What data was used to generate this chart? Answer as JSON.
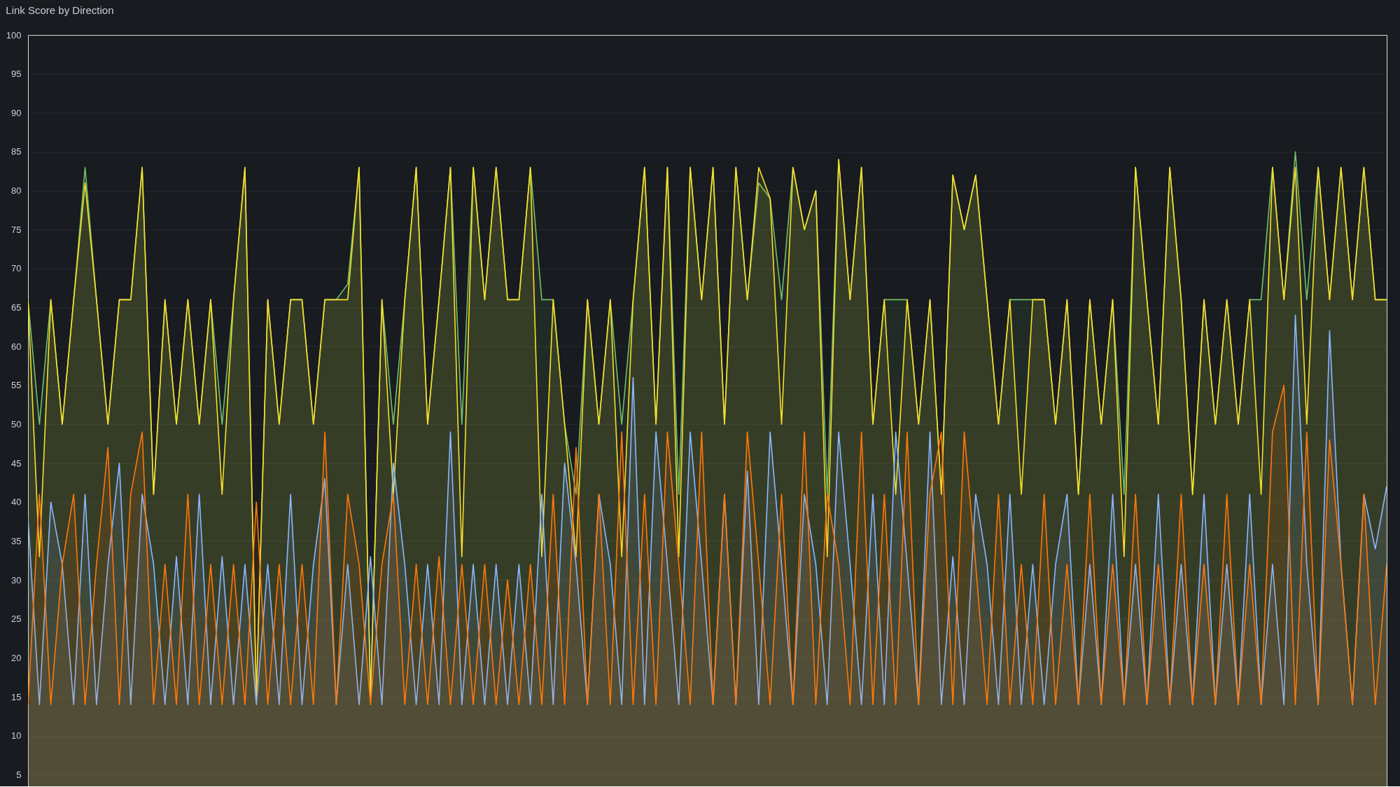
{
  "chart_data": {
    "type": "area",
    "title": "Link Score by Direction",
    "categories": [
      null,
      null,
      null,
      null,
      null,
      null,
      null,
      null,
      null,
      null,
      null,
      null,
      null,
      null,
      null,
      null,
      null,
      null,
      null,
      null,
      null,
      null,
      null,
      null,
      null,
      null,
      null,
      null,
      null,
      null,
      null,
      null,
      null,
      null,
      null,
      null,
      null,
      null,
      null,
      null,
      null,
      null,
      null,
      null,
      null,
      null,
      null,
      null,
      null,
      null,
      null,
      null,
      null,
      null,
      null,
      null,
      null,
      null,
      null,
      null,
      null,
      null,
      null,
      null,
      null,
      null,
      null,
      null,
      null,
      null,
      null,
      null,
      null,
      null,
      null,
      null,
      null,
      null,
      null,
      null,
      null,
      null,
      null,
      null,
      null,
      null,
      null,
      null,
      null,
      null,
      null,
      null,
      null,
      null,
      null,
      null,
      null,
      null,
      null,
      null,
      null,
      null,
      null,
      null,
      null,
      null,
      null,
      null,
      null,
      null,
      null,
      null,
      null,
      null,
      null,
      null,
      null,
      null,
      null,
      null
    ],
    "series": [
      {
        "color": "#73bf69",
        "values": [
          66,
          50,
          66,
          50,
          66,
          83,
          66,
          50,
          66,
          66,
          83,
          41,
          66,
          50,
          66,
          50,
          66,
          50,
          66,
          83,
          15,
          66,
          50,
          66,
          66,
          50,
          66,
          66,
          68,
          83,
          15,
          66,
          50,
          66,
          83,
          50,
          66,
          83,
          50,
          83,
          66,
          83,
          66,
          66,
          83,
          66,
          66,
          50,
          41,
          66,
          50,
          66,
          50,
          66,
          83,
          50,
          83,
          41,
          83,
          66,
          83,
          50,
          83,
          66,
          81,
          79,
          66,
          83,
          75,
          80,
          41,
          84,
          66,
          83,
          50,
          66,
          66,
          66,
          50,
          66,
          41,
          82,
          75,
          82,
          66,
          50,
          66,
          66,
          66,
          66,
          50,
          66,
          41,
          66,
          50,
          66,
          41,
          83,
          66,
          50,
          83,
          66,
          41,
          66,
          50,
          66,
          50,
          66,
          66,
          83,
          66,
          85,
          66,
          83,
          66,
          83,
          66,
          83,
          66,
          66
        ]
      },
      {
        "color": "#fade2a",
        "values": [
          66,
          33,
          66,
          50,
          66,
          81,
          66,
          50,
          66,
          66,
          83,
          41,
          66,
          50,
          66,
          50,
          66,
          41,
          66,
          83,
          15,
          66,
          50,
          66,
          66,
          50,
          66,
          66,
          66,
          83,
          15,
          66,
          41,
          66,
          83,
          50,
          66,
          83,
          33,
          83,
          66,
          83,
          66,
          66,
          83,
          33,
          66,
          50,
          33,
          66,
          50,
          66,
          33,
          66,
          83,
          50,
          83,
          33,
          83,
          66,
          83,
          50,
          83,
          66,
          83,
          79,
          50,
          83,
          75,
          80,
          33,
          84,
          66,
          83,
          50,
          66,
          41,
          66,
          50,
          66,
          41,
          82,
          75,
          82,
          66,
          50,
          66,
          41,
          66,
          66,
          50,
          66,
          41,
          66,
          50,
          66,
          33,
          83,
          66,
          50,
          83,
          66,
          41,
          66,
          50,
          66,
          50,
          66,
          41,
          83,
          66,
          83,
          50,
          83,
          66,
          83,
          66,
          83,
          66,
          66
        ]
      },
      {
        "color": "#8ab8ff",
        "values": [
          38,
          14,
          40,
          32,
          14,
          41,
          14,
          32,
          45,
          14,
          41,
          32,
          14,
          33,
          14,
          41,
          14,
          33,
          14,
          32,
          14,
          32,
          14,
          41,
          14,
          32,
          43,
          14,
          32,
          14,
          33,
          14,
          45,
          32,
          14,
          32,
          14,
          49,
          14,
          32,
          14,
          32,
          14,
          32,
          14,
          41,
          14,
          45,
          32,
          14,
          41,
          32,
          14,
          56,
          14,
          49,
          32,
          14,
          49,
          32,
          14,
          41,
          14,
          44,
          14,
          49,
          32,
          14,
          41,
          32,
          14,
          49,
          32,
          14,
          41,
          14,
          49,
          32,
          14,
          49,
          14,
          33,
          14,
          41,
          32,
          14,
          41,
          14,
          32,
          14,
          32,
          41,
          14,
          32,
          14,
          41,
          14,
          32,
          14,
          41,
          14,
          32,
          14,
          41,
          14,
          32,
          14,
          41,
          14,
          32,
          14,
          64,
          32,
          14,
          62,
          32,
          14,
          41,
          34,
          42
        ]
      },
      {
        "color": "#ff780a",
        "values": [
          14,
          41,
          14,
          32,
          41,
          14,
          32,
          47,
          14,
          41,
          49,
          14,
          32,
          14,
          41,
          14,
          32,
          14,
          32,
          14,
          40,
          14,
          32,
          14,
          32,
          14,
          49,
          14,
          41,
          32,
          14,
          32,
          41,
          14,
          32,
          14,
          33,
          14,
          32,
          14,
          32,
          14,
          30,
          14,
          32,
          14,
          41,
          14,
          47,
          14,
          41,
          14,
          49,
          14,
          41,
          14,
          49,
          32,
          14,
          49,
          14,
          41,
          14,
          49,
          32,
          14,
          41,
          14,
          49,
          14,
          41,
          32,
          14,
          49,
          14,
          41,
          14,
          49,
          14,
          41,
          49,
          14,
          49,
          32,
          14,
          41,
          14,
          32,
          14,
          41,
          14,
          32,
          14,
          41,
          14,
          32,
          14,
          41,
          14,
          32,
          14,
          41,
          14,
          32,
          14,
          41,
          14,
          32,
          14,
          49,
          55,
          14,
          49,
          14,
          48,
          32,
          14,
          41,
          14,
          32
        ]
      }
    ],
    "ylim": [
      3.5,
      100
    ],
    "yticks": [
      5,
      10,
      15,
      20,
      25,
      30,
      35,
      40,
      45,
      50,
      55,
      60,
      65,
      70,
      75,
      80,
      85,
      90,
      95,
      100
    ],
    "grid": "y",
    "tick_labels": "y"
  }
}
